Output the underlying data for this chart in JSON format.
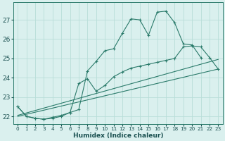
{
  "xlabel": "Humidex (Indice chaleur)",
  "bg_color": "#daf0ee",
  "grid_color": "#b8ddd8",
  "line_color": "#2a7a6a",
  "xlim": [
    -0.5,
    23.5
  ],
  "ylim": [
    21.6,
    27.9
  ],
  "xticks": [
    0,
    1,
    2,
    3,
    4,
    5,
    6,
    7,
    8,
    9,
    10,
    11,
    12,
    13,
    14,
    15,
    16,
    17,
    18,
    19,
    20,
    21,
    22,
    23
  ],
  "yticks": [
    22,
    23,
    24,
    25,
    26,
    27
  ],
  "series_marked_1": {
    "x": [
      0,
      1,
      2,
      3,
      4,
      5,
      6,
      7,
      8,
      9,
      10,
      11,
      12,
      13,
      14,
      15,
      16,
      17,
      18,
      19,
      20,
      21
    ],
    "y": [
      22.5,
      22.0,
      21.9,
      21.85,
      21.95,
      22.05,
      22.2,
      22.35,
      24.35,
      24.85,
      25.4,
      25.5,
      26.3,
      27.05,
      27.0,
      26.2,
      27.4,
      27.45,
      26.85,
      25.75,
      25.7,
      25.05
    ]
  },
  "series_marked_2": {
    "x": [
      0,
      1,
      2,
      3,
      4,
      5,
      6,
      7,
      8,
      9,
      10,
      11,
      12,
      13,
      14,
      15,
      16,
      17,
      18,
      19,
      20,
      21,
      22,
      23
    ],
    "y": [
      22.5,
      22.0,
      21.9,
      21.85,
      21.9,
      22.0,
      22.2,
      23.7,
      23.95,
      23.3,
      23.6,
      24.05,
      24.3,
      24.5,
      24.6,
      24.7,
      24.8,
      24.9,
      25.0,
      25.6,
      25.65,
      25.6,
      25.05,
      24.45
    ]
  },
  "series_line_1": {
    "x": [
      0,
      23
    ],
    "y": [
      22.0,
      24.45
    ]
  },
  "series_line_2": {
    "x": [
      0,
      23
    ],
    "y": [
      22.05,
      24.95
    ]
  }
}
